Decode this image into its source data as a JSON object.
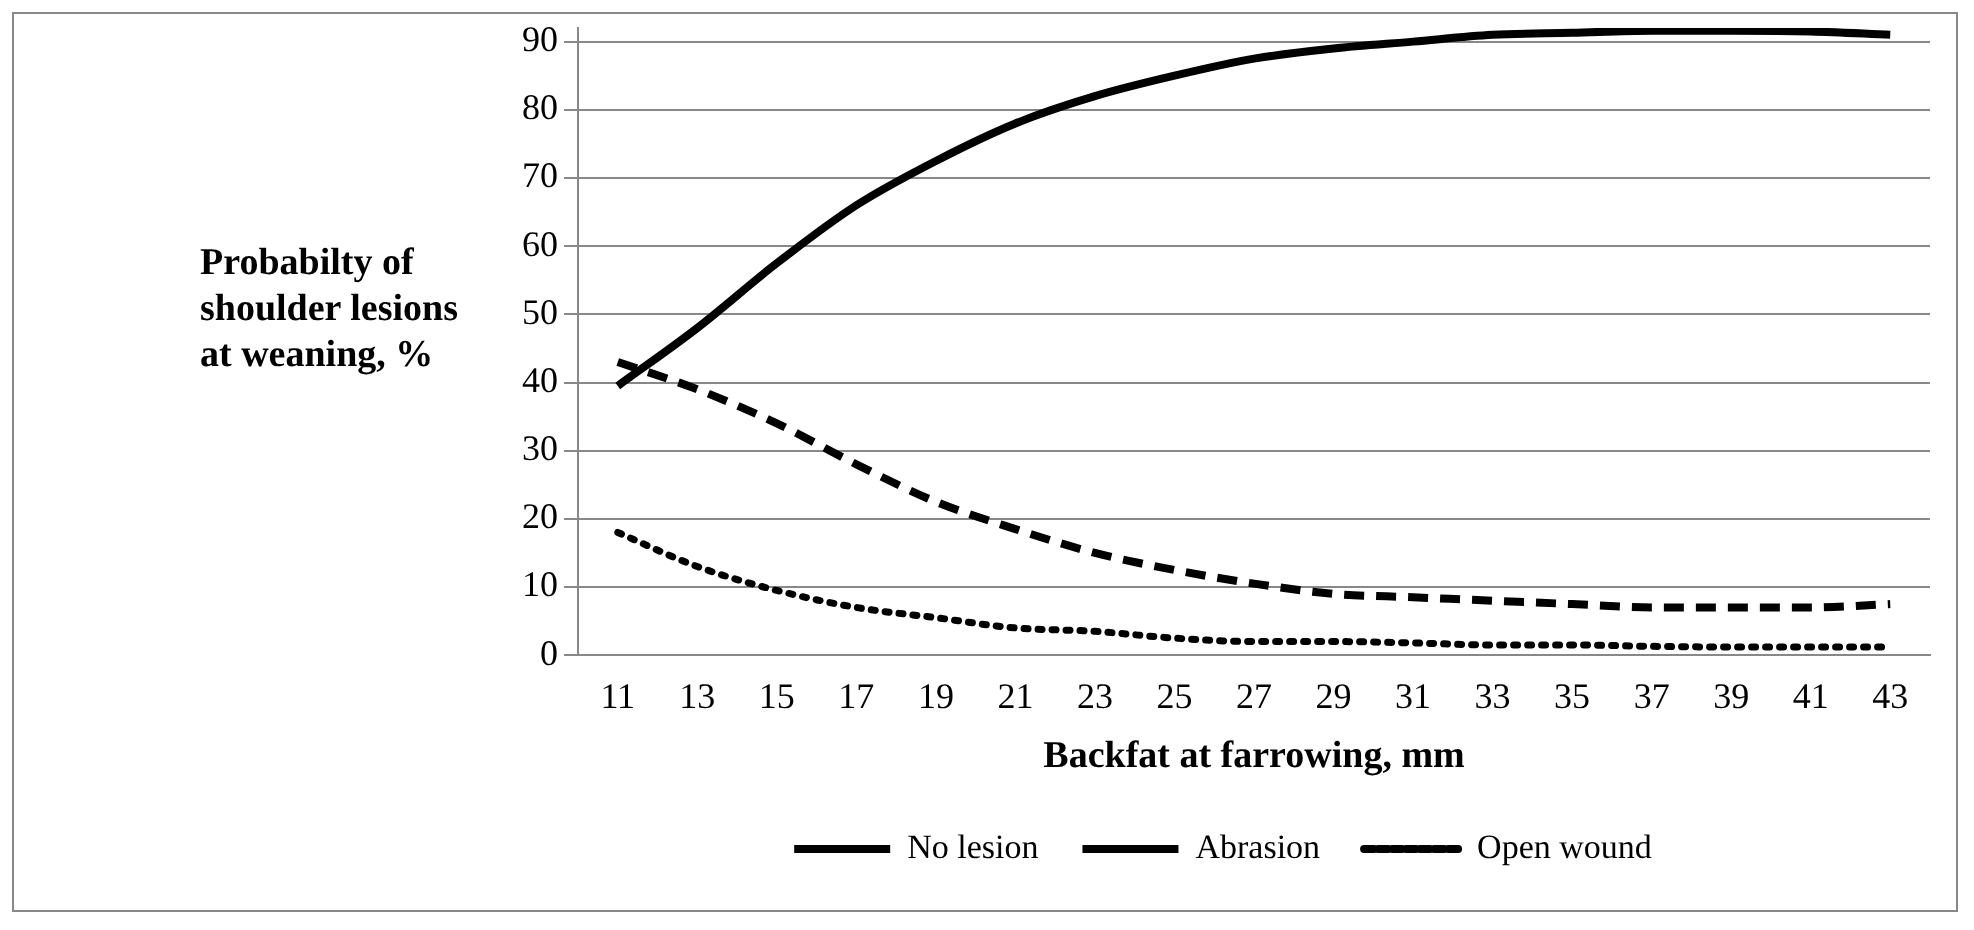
{
  "chart_data": {
    "type": "line",
    "xlabel": "Backfat at farrowing, mm",
    "ylabel": "Probabilty of shoulder lesions at weaning, %",
    "categories": [
      "11",
      "13",
      "15",
      "17",
      "19",
      "21",
      "23",
      "25",
      "27",
      "29",
      "31",
      "33",
      "35",
      "37",
      "39",
      "41",
      "43"
    ],
    "ylim": [
      0,
      92
    ],
    "yticks": [
      0,
      10,
      20,
      30,
      40,
      50,
      60,
      70,
      80,
      90
    ],
    "grid": "y",
    "legend": "bottom",
    "marker": "none",
    "series": [
      {
        "name": "No lesion",
        "color": "#000000",
        "line_style": "solid",
        "values": [
          39.5,
          48,
          57.5,
          66,
          72.5,
          78,
          82,
          85,
          87.5,
          89,
          90,
          91,
          91.3,
          91.6,
          91.6,
          91.5,
          91
        ]
      },
      {
        "name": "Abrasion",
        "color": "#000000",
        "line_style": "dashed",
        "values": [
          43,
          39,
          34,
          28,
          22.5,
          18.5,
          15,
          12.5,
          10.5,
          9,
          8.5,
          8,
          7.5,
          7,
          7,
          7,
          7.5
        ]
      },
      {
        "name": "Open wound",
        "color": "#000000",
        "line_style": "dotted",
        "values": [
          18,
          13,
          9.5,
          7,
          5.5,
          4,
          3.5,
          2.5,
          2,
          2,
          1.8,
          1.5,
          1.5,
          1.3,
          1.2,
          1.2,
          1.2
        ]
      }
    ]
  }
}
